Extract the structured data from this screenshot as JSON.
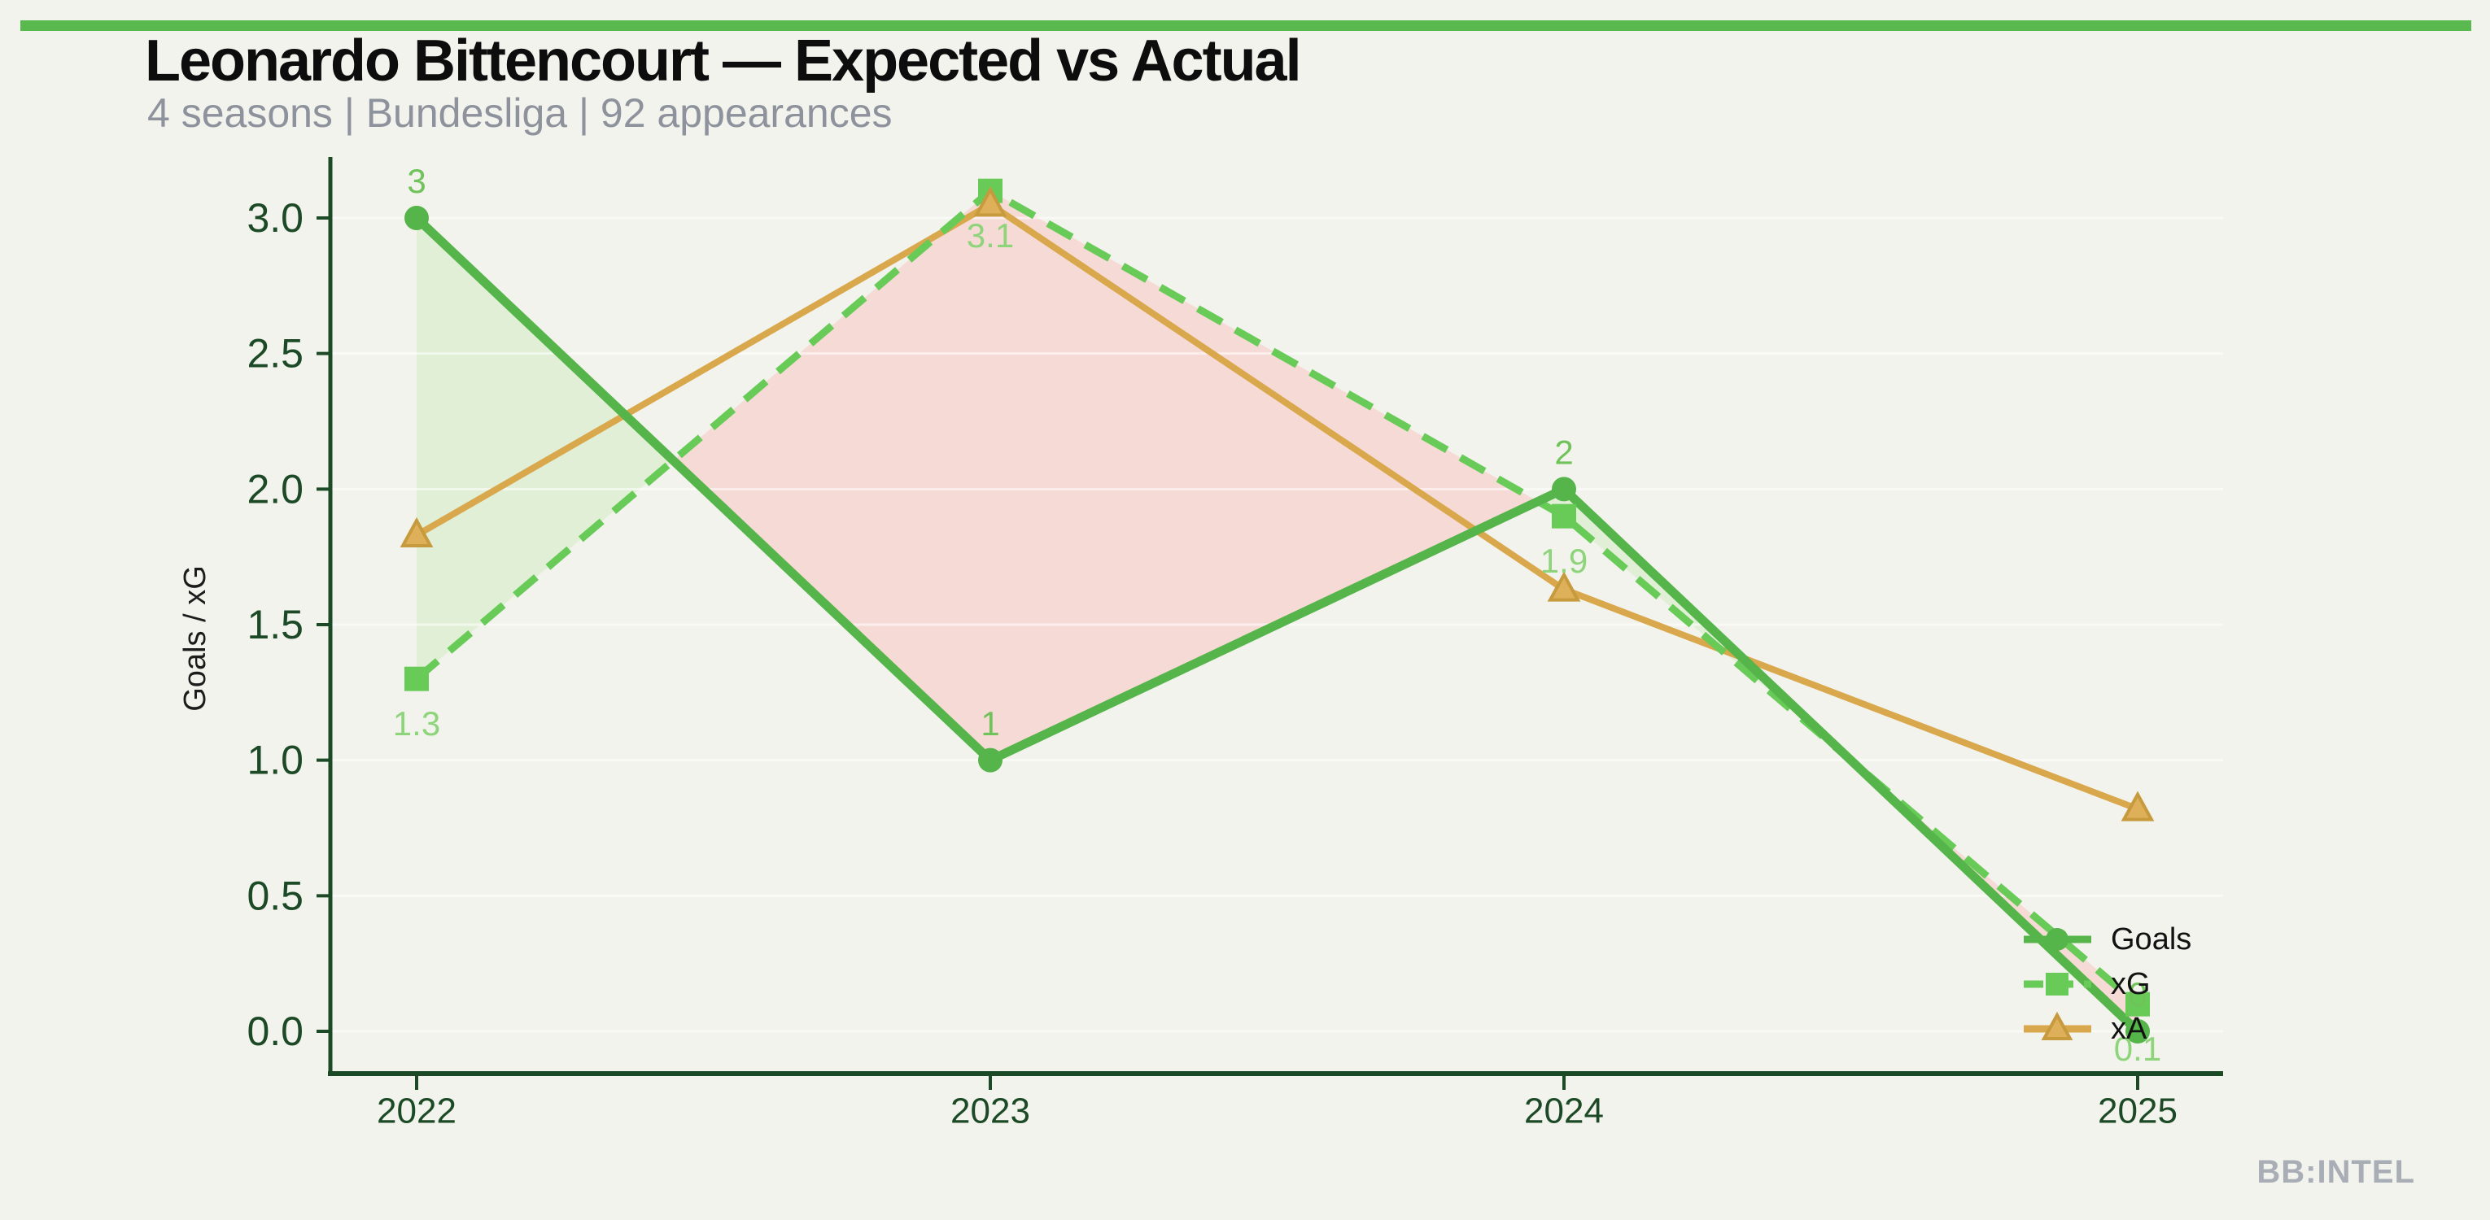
{
  "page": {
    "background": "#f2f3ec",
    "accent_bar_color": "#5ab94e",
    "watermark": "BB:INTEL"
  },
  "header": {
    "title": "Leonardo Bittencourt — Expected vs Actual",
    "subtitle": "4 seasons | Bundesliga | 92 appearances"
  },
  "chart_data": {
    "type": "line",
    "title": "Leonardo Bittencourt — Expected vs Actual",
    "subtitle": "4 seasons | Bundesliga | 92 appearances",
    "x": [
      2022,
      2023,
      2024,
      2025
    ],
    "x_tick_labels": [
      "2022",
      "2023",
      "2024",
      "2025"
    ],
    "series": [
      {
        "name": "Goals",
        "values": [
          3,
          1,
          2,
          0
        ],
        "point_labels": [
          "3",
          "1",
          "2",
          "0"
        ],
        "color": "#55b44a",
        "label_color": "#70c25a",
        "marker": "circle",
        "line_style": "solid"
      },
      {
        "name": "xG",
        "values": [
          1.3,
          3.1,
          1.9,
          0.1
        ],
        "point_labels": [
          "1.3",
          "3.1",
          "1.9",
          "0.1"
        ],
        "color": "#68cb58",
        "label_color": "#8ed47b",
        "marker": "square",
        "line_style": "dashed"
      },
      {
        "name": "xA",
        "values": [
          1.83,
          3.05,
          1.63,
          0.82
        ],
        "point_labels": [],
        "color": "#d9a84c",
        "marker_fill": "#ddb059",
        "marker_edge": "#c89a3e",
        "marker": "triangle",
        "line_style": "solid"
      }
    ],
    "ylabel": "Goals / xG",
    "xlabel": "",
    "yticks": [
      0,
      0.5,
      1,
      1.5,
      2,
      2.5,
      3
    ],
    "ytick_labels": [
      "0.0",
      "0.5",
      "1.0",
      "1.5",
      "2.0",
      "2.5",
      "3.0"
    ],
    "ylim": [
      -0.16,
      3.22
    ],
    "grid": "faint horizontal lines at each 0.5 step",
    "legend": {
      "position": "lower right inside plot",
      "entries": [
        "Goals",
        "xG",
        "xA"
      ]
    },
    "fills": {
      "description": "shaded area between Goals and xG: green where Goals > xG, pink where xG > Goals",
      "overperformance_color": "#e1efd6",
      "underperformance_color": "#f6dad5"
    },
    "axis_color": "#1d4a26"
  }
}
